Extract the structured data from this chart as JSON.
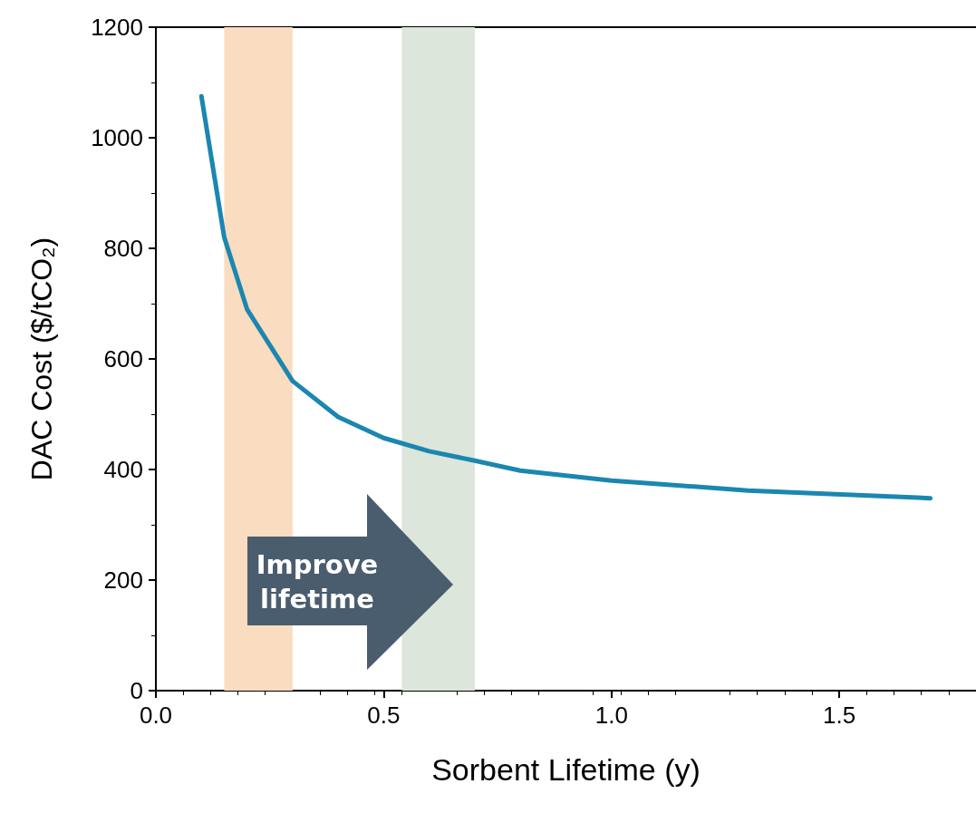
{
  "chart_data": {
    "type": "line",
    "xlabel": "Sorbent Lifetime (y)",
    "ylabel": "DAC Cost ($/tCO₂)",
    "x": [
      0.1,
      0.15,
      0.2,
      0.3,
      0.4,
      0.5,
      0.6,
      0.7,
      0.8,
      1.0,
      1.3,
      1.7
    ],
    "series": [
      {
        "color": "#1b87b0",
        "values": [
          1075,
          820,
          690,
          560,
          495,
          457,
          433,
          416,
          398,
          380,
          362,
          348
        ]
      }
    ],
    "xlim": [
      0,
      1.8
    ],
    "xticks": [
      {
        "value": 0,
        "label": "0.0"
      },
      0.5,
      {
        "value": 1,
        "label": "1.0"
      },
      1.5
    ],
    "ylim": [
      0,
      1200
    ],
    "yticks": [
      0,
      200,
      400,
      600,
      800,
      1000,
      1200
    ],
    "bands": [
      {
        "axis": "x",
        "from": 0.15,
        "to": 0.3,
        "color": "#fadcc0"
      },
      {
        "axis": "x",
        "from": 0.54,
        "to": 0.7,
        "color": "#dce6da"
      }
    ],
    "annotations": [
      "Improve lifetime"
    ],
    "grid": false,
    "marker": "none",
    "line_style": "solid"
  }
}
